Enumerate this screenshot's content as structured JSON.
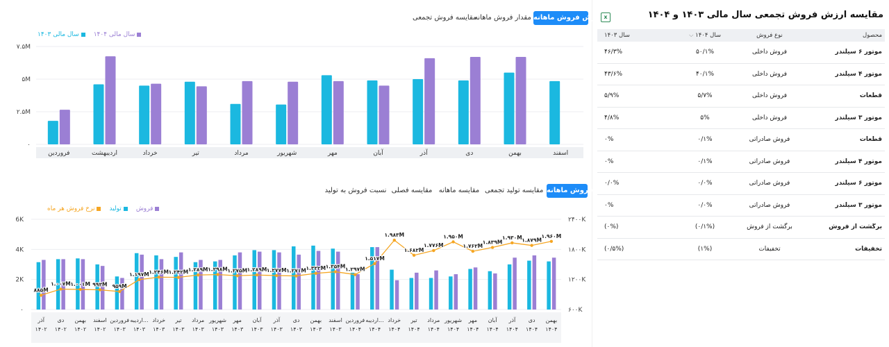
{
  "top_chart": {
    "tabs": [
      {
        "label": "ارزش فروش ماهانه",
        "active": true
      },
      {
        "label": "مقدار فروش ماهانه",
        "active": false
      },
      {
        "label": "مقایسه فروش تجمعی",
        "active": false
      }
    ],
    "legend": [
      {
        "label": "سال مالی ۱۴۰۴",
        "color": "#9b7fd4"
      },
      {
        "label": "سال مالی ۱۴۰۳",
        "color": "#1bb8e0"
      }
    ]
  },
  "bottom_chart": {
    "tabs": [
      {
        "label": "فروش ماهانه",
        "active": true
      },
      {
        "label": "مقایسه تولید تجمعی",
        "active": false
      },
      {
        "label": "مقایسه ماهانه",
        "active": false
      },
      {
        "label": "مقایسه فصلی",
        "active": false
      },
      {
        "label": "نسبت فروش به تولید",
        "active": false
      }
    ],
    "legend": [
      {
        "label": "فروش",
        "color": "#9b7fd4"
      },
      {
        "label": "تولید",
        "color": "#1bb8e0"
      },
      {
        "label": "نرخ فروش هر ماه",
        "color": "#f5a623"
      }
    ]
  },
  "table": {
    "title": "مقایسه ارزش فروش تجمعی سال مالی ۱۴۰۳ و ۱۴۰۴",
    "export_icon": "excel-export-icon",
    "headers": {
      "product": "محصول",
      "type": "نوع فروش",
      "y1404": "سال ۱۴۰۴",
      "y1403": "سال ۱۴۰۳"
    },
    "rows": [
      {
        "product": "موتور ۶ سیلندر",
        "type": "فروش داخلی",
        "y1404": "۵۰/۱%",
        "y1403": "۴۶/۳%"
      },
      {
        "product": "موتور ۴ سیلندر",
        "type": "فروش داخلی",
        "y1404": "۴۰/۱%",
        "y1403": "۴۳/۶%"
      },
      {
        "product": "قطعات",
        "type": "فروش داخلی",
        "y1404": "۵/۷%",
        "y1403": "۵/۹%"
      },
      {
        "product": "موتور ۳ سیلندر",
        "type": "فروش داخلی",
        "y1404": "۵%",
        "y1403": "۴/۸%"
      },
      {
        "product": "قطعات",
        "type": "فروش صادراتی",
        "y1404": "۰/۱%",
        "y1403": "۰%"
      },
      {
        "product": "موتور ۴ سیلندر",
        "type": "فروش صادراتی",
        "y1404": "۰/۱%",
        "y1403": "۰%"
      },
      {
        "product": "موتور ۶ سیلندر",
        "type": "فروش صادراتی",
        "y1404": "۰/۰%",
        "y1403": "۰/۰%"
      },
      {
        "product": "موتور ۳ سیلندر",
        "type": "فروش صادراتی",
        "y1404": "۰/۰%",
        "y1403": "۰%"
      },
      {
        "product": "برگشت از فروش",
        "type": "برگشت از فروش",
        "y1404": "(۰/۱%)",
        "y1403": "(۰%)"
      },
      {
        "product": "تخفیفات",
        "type": "تخفیفات",
        "y1404": "(۱%)",
        "y1403": "(۰/۵%)"
      }
    ]
  },
  "chart_data": [
    {
      "type": "bar",
      "categories": [
        "فروردین",
        "اردیبهشت",
        "خرداد",
        "تیر",
        "مرداد",
        "شهریور",
        "مهر",
        "آبان",
        "آذر",
        "دی",
        "بهمن",
        "اسفند"
      ],
      "series": [
        {
          "name": "سال مالی ۱۴۰۳",
          "values": [
            1.8,
            4.6,
            4.5,
            4.8,
            3.1,
            3.05,
            5.3,
            4.9,
            5.0,
            4.9,
            5.5,
            4.85
          ]
        },
        {
          "name": "سال مالی ۱۴۰۴",
          "values": [
            2.65,
            6.75,
            4.65,
            4.45,
            4.85,
            4.8,
            4.85,
            4.5,
            6.6,
            6.7,
            6.7,
            null
          ]
        }
      ],
      "yticks": [
        "۰",
        "۲.۵M",
        "۵M",
        "۷.۵M"
      ],
      "ylim": [
        0,
        7.5
      ],
      "legend": "top-right"
    },
    {
      "type": "bar+line",
      "x_labels": [
        [
          "آذر",
          "۱۴۰۲"
        ],
        [
          "دی",
          "۱۴۰۲"
        ],
        [
          "بهمن",
          "۱۴۰۲"
        ],
        [
          "اسفند",
          "۱۴۰۲"
        ],
        [
          "فروردین",
          "۱۴۰۳"
        ],
        [
          "اردیبه...",
          "۱۴۰۳"
        ],
        [
          "خرداد",
          "۱۴۰۳"
        ],
        [
          "تیر",
          "۱۴۰۳"
        ],
        [
          "مرداد",
          "۱۴۰۳"
        ],
        [
          "شهریور",
          "۱۴۰۳"
        ],
        [
          "مهر",
          "۱۴۰۳"
        ],
        [
          "آبان",
          "۱۴۰۳"
        ],
        [
          "آذر",
          "۱۴۰۳"
        ],
        [
          "دی",
          "۱۴۰۳"
        ],
        [
          "بهمن",
          "۱۴۰۳"
        ],
        [
          "اسفند",
          "۱۴۰۳"
        ],
        [
          "فروردین",
          "۱۴۰۴"
        ],
        [
          "اردیبه...",
          "۱۴۰۴"
        ],
        [
          "خرداد",
          "۱۴۰۴"
        ],
        [
          "تیر",
          "۱۴۰۴"
        ],
        [
          "مرداد",
          "۱۴۰۴"
        ],
        [
          "شهریور",
          "۱۴۰۴"
        ],
        [
          "مهر",
          "۱۴۰۴"
        ],
        [
          "آبان",
          "۱۴۰۴"
        ],
        [
          "آذر",
          "۱۴۰۴"
        ],
        [
          "دی",
          "۱۴۰۴"
        ],
        [
          "بهمن",
          "۱۴۰۴"
        ]
      ],
      "series": [
        {
          "name": "تولید",
          "values": [
            3150,
            3350,
            3400,
            3000,
            2200,
            3750,
            3600,
            3500,
            3150,
            3200,
            3600,
            3950,
            3950,
            4200,
            4250,
            4050,
            2450,
            4150,
            2650,
            2100,
            2100,
            2200,
            2700,
            2550,
            3000,
            3250,
            3200
          ]
        },
        {
          "name": "فروش",
          "values": [
            3300,
            3350,
            3350,
            2900,
            2100,
            3650,
            3350,
            3800,
            3300,
            3300,
            3800,
            3850,
            3800,
            3650,
            3900,
            3850,
            2350,
            4150,
            1950,
            2450,
            2600,
            2350,
            2800,
            2400,
            3450,
            3600,
            3450
          ]
        },
        {
          "name": "نرخ فروش هر ماه",
          "values": [
            885,
            1007,
            1001,
            993,
            959,
            1197,
            1246,
            1242,
            1289,
            1298,
            1275,
            1289,
            1277,
            1271,
            1322,
            1354,
            1297,
            1517,
            1983,
            1682,
            1776,
            1950,
            1762,
            1839,
            1930,
            1879,
            1960
          ]
        }
      ],
      "point_labels": [
        "۸۸۵M",
        "۱.۰۰۷M",
        "۱.۰۰۱M",
        "۹۹۳M",
        "۹۵۹M",
        "۱.۱۹۷M",
        "۱.۲۴۶M",
        "۱.۲۴۲M",
        "۱.۲۸۹M",
        "۱.۲۹۸M",
        "۱.۲۷۵M",
        "۱.۲۸۹M",
        "۱.۲۷۷M",
        "۱.۲۷۱M",
        "۱.۳۲۲M",
        "۱.۳۵۴M",
        "۱.۲۹۷M",
        "۱.۵۱۷M",
        "۱.۹۸۳M",
        "۱.۶۸۲M",
        "۱.۷۷۶M",
        "۱.۹۵۰M",
        "۱.۷۶۲M",
        "۱.۸۳۹M",
        "۱.۹۳۰M",
        "۱.۸۷۹M",
        "۱.۹۶۰M"
      ],
      "yticks_left": [
        "۰",
        "2K",
        "4K",
        "6K"
      ],
      "ylim_left": [
        0,
        6000
      ],
      "yticks_right": [
        "۶۰۰K",
        "۱۲۰۰K",
        "۱۸۰۰K",
        "۲۴۰۰K"
      ],
      "ylim_right": [
        600,
        2400
      ],
      "legend": "top-left"
    }
  ]
}
